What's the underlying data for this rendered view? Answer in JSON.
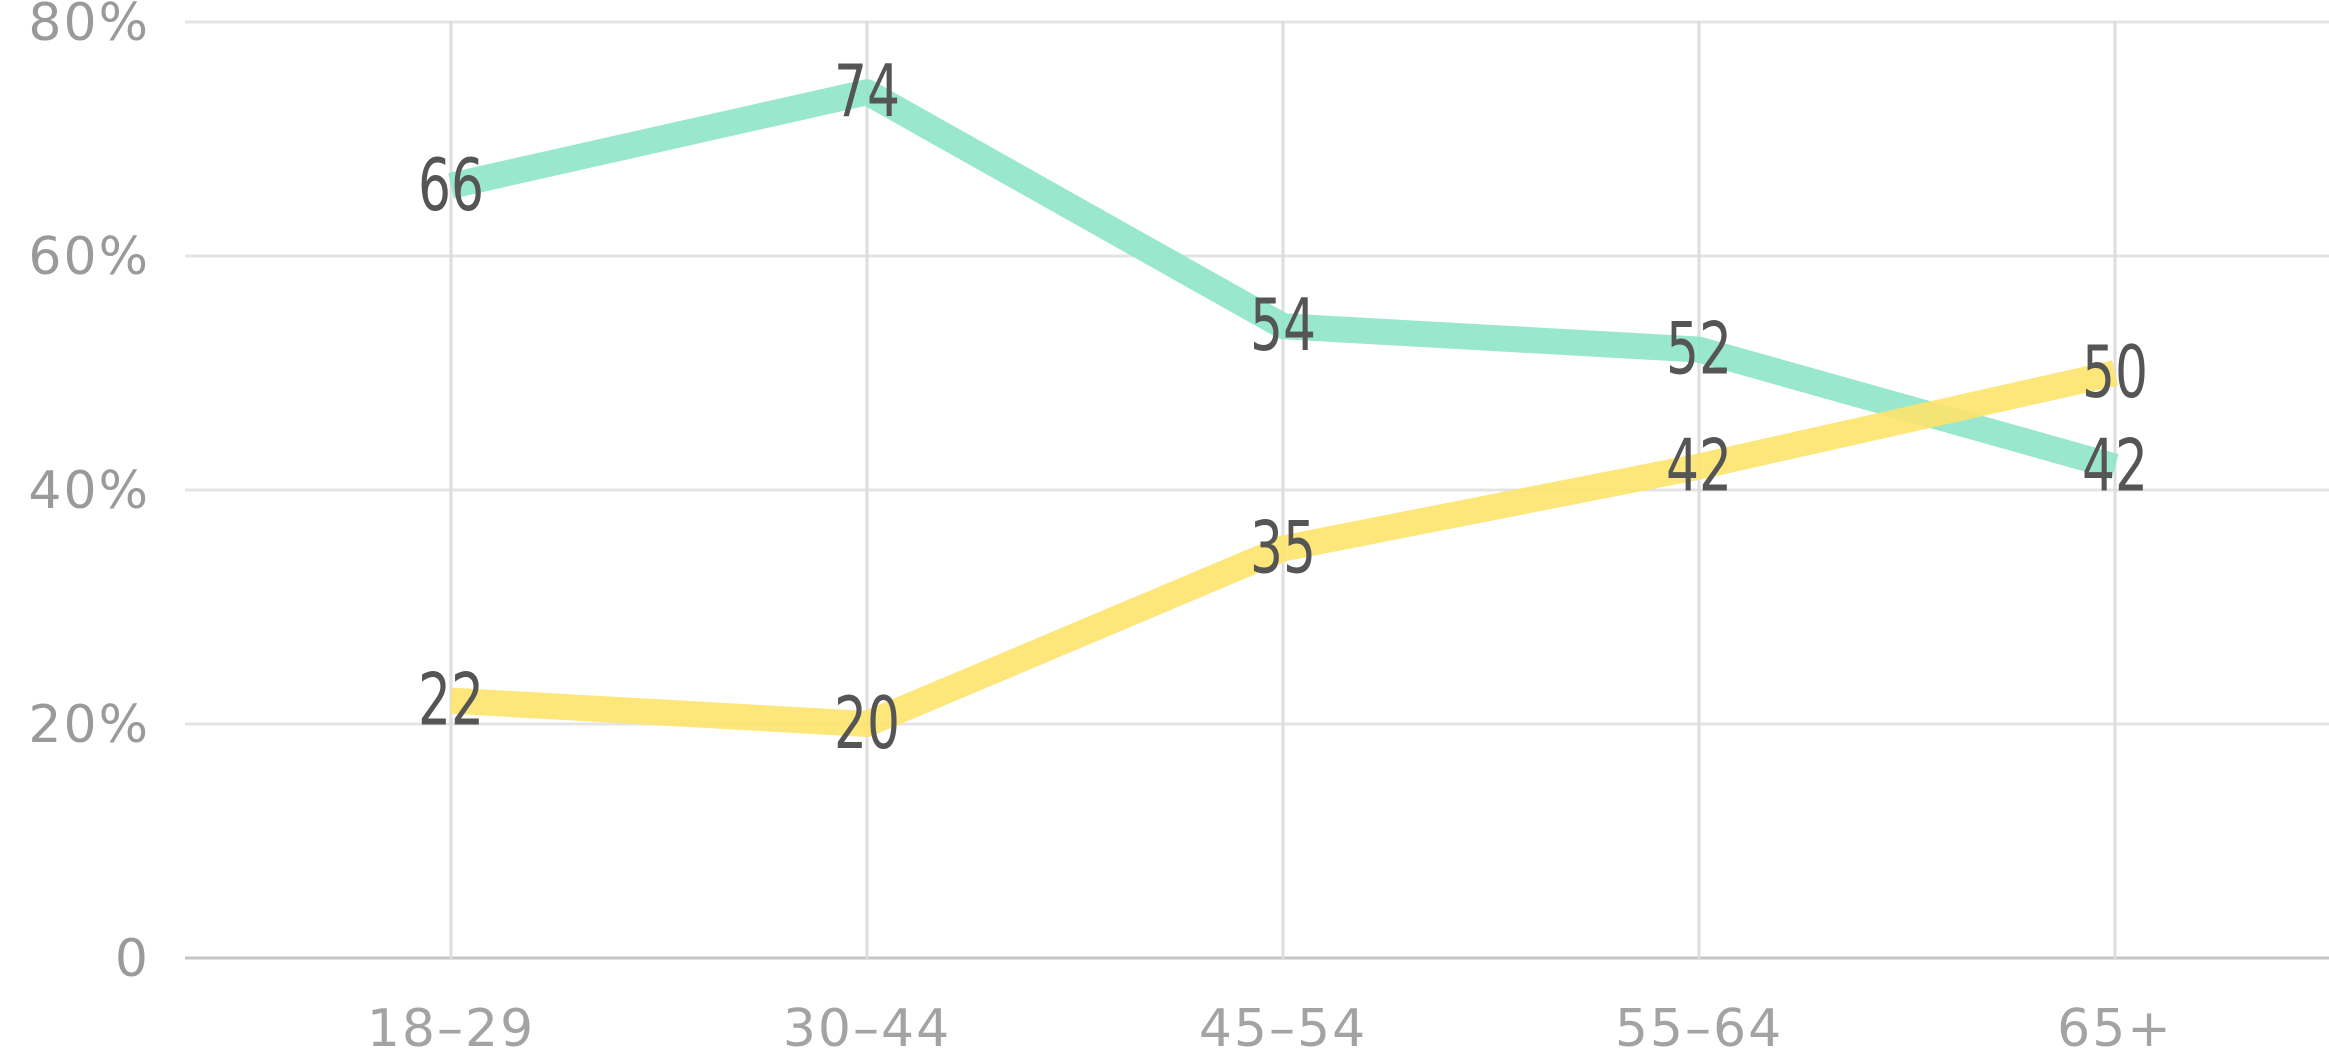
{
  "chart_data": {
    "type": "line",
    "categories": [
      "18–29",
      "30–44",
      "45–54",
      "55–64",
      "65+"
    ],
    "series": [
      {
        "values": [
          66,
          74,
          54,
          52,
          42
        ],
        "labels": [
          "66",
          "74",
          "54",
          "52",
          "42"
        ],
        "color": "#8ee6c8"
      },
      {
        "values": [
          22,
          20,
          35,
          42,
          50
        ],
        "labels": [
          "22",
          "20",
          "35",
          "42",
          "50"
        ],
        "color": "#fde36b"
      }
    ],
    "yticks": [
      0,
      20,
      40,
      60,
      80
    ],
    "ytick_labels": [
      "0",
      "20%",
      "40%",
      "60%",
      "80%"
    ],
    "ylim": [
      0,
      80
    ],
    "grid": true,
    "title": "",
    "xlabel": "",
    "ylabel": ""
  }
}
